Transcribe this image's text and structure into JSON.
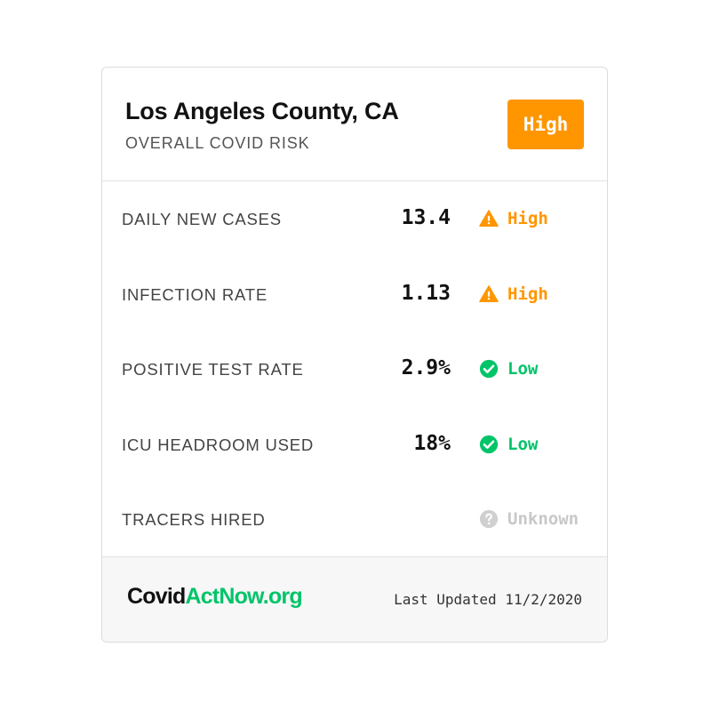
{
  "header": {
    "region": "Los Angeles County, CA",
    "subtitle": "OVERALL COVID RISK",
    "risk_level": "High",
    "risk_color": "#ff9600"
  },
  "metrics": [
    {
      "label": "DAILY NEW CASES",
      "value": "13.4",
      "status": "High",
      "status_icon": "warning-icon",
      "status_color": "#ff9600"
    },
    {
      "label": "INFECTION RATE",
      "value": "1.13",
      "status": "High",
      "status_icon": "warning-icon",
      "status_color": "#ff9600"
    },
    {
      "label": "POSITIVE TEST RATE",
      "value": "2.9%",
      "status": "Low",
      "status_icon": "check-circle-icon",
      "status_color": "#00c468"
    },
    {
      "label": "ICU HEADROOM USED",
      "value": "18%",
      "status": "Low",
      "status_icon": "check-circle-icon",
      "status_color": "#00c468"
    },
    {
      "label": "TRACERS HIRED",
      "value": "",
      "status": "Unknown",
      "status_icon": "question-circle-icon",
      "status_color": "#d0d0d0"
    }
  ],
  "footer": {
    "brand_part1": "Covid",
    "brand_part2": "ActNow.org",
    "brand_color": "#00c468",
    "last_updated": "Last Updated 11/2/2020"
  }
}
